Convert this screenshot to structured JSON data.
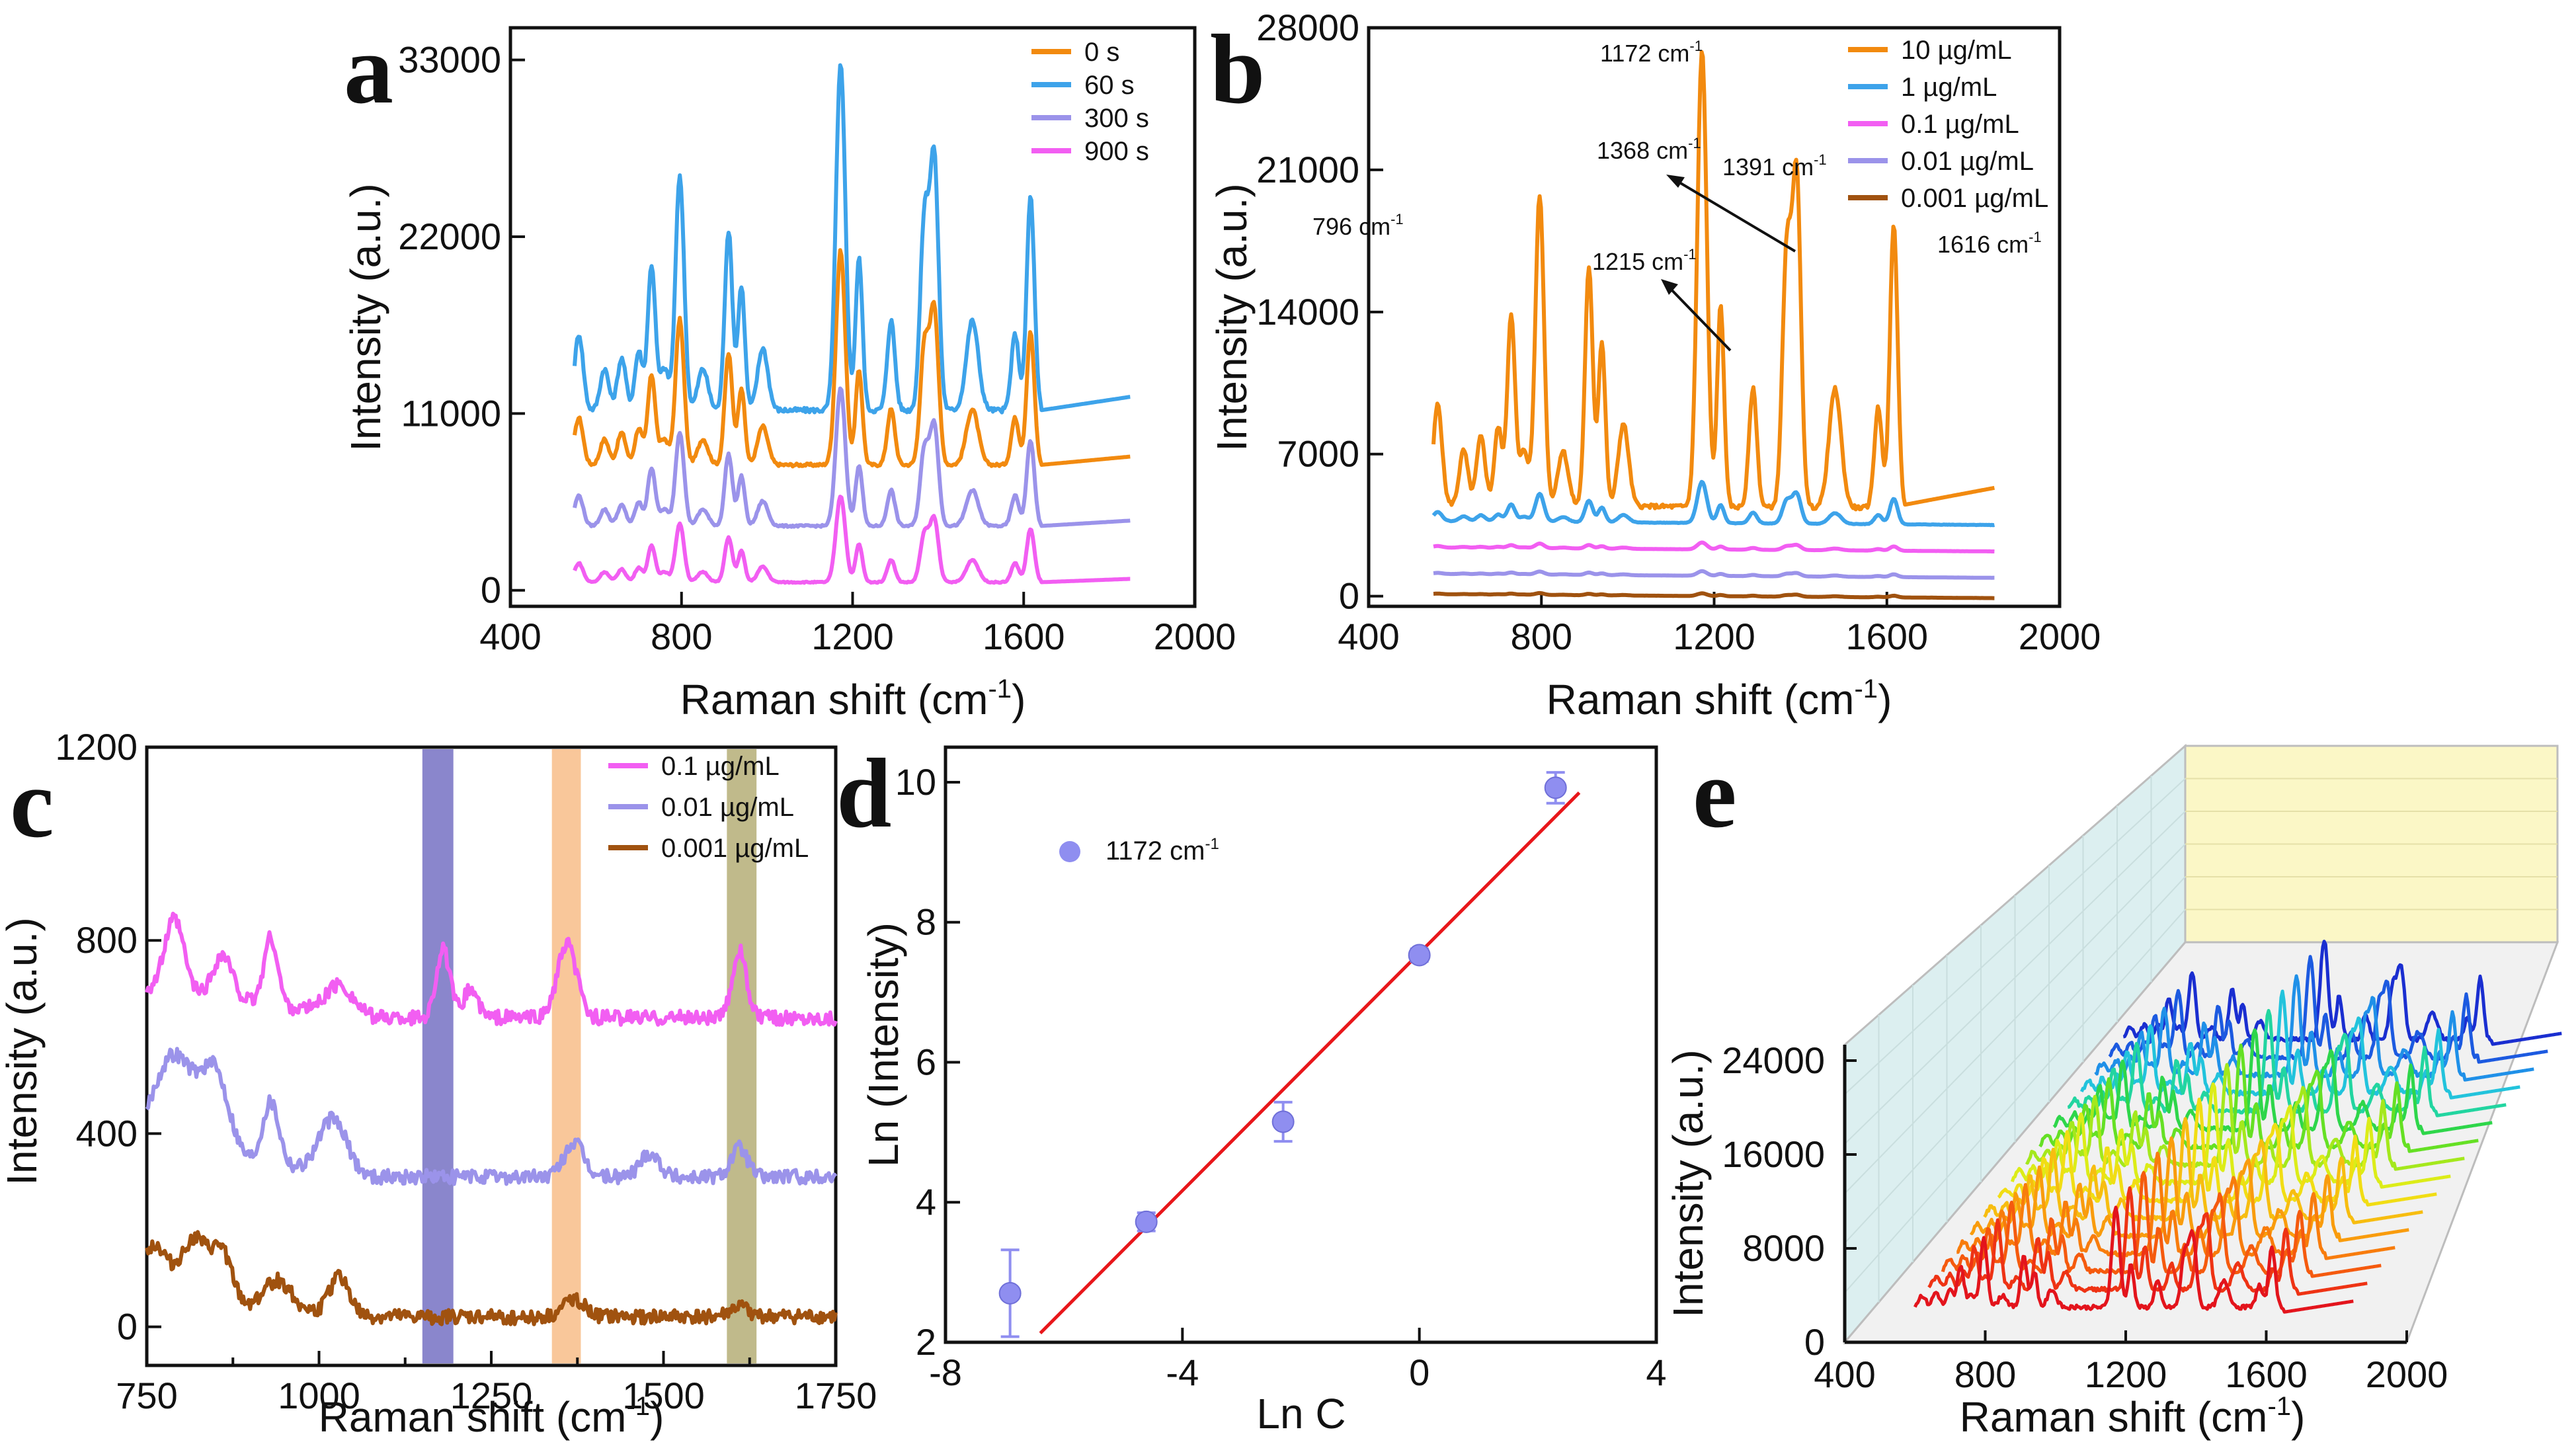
{
  "chart_data": [
    {
      "panel": "a",
      "type": "line",
      "xlabel": "Raman shift (cm-1)",
      "ylabel": "Intensity (a.u.)",
      "xlim": [
        400,
        2000
      ],
      "ylim": [
        -1000,
        35000
      ],
      "xticks": [
        400,
        800,
        1200,
        1600,
        2000
      ],
      "yticks": [
        0,
        11000,
        22000,
        33000
      ],
      "legend": "top-right",
      "peaks": [
        620,
        660,
        700,
        730,
        796,
        850,
        910,
        940,
        990,
        1172,
        1215,
        1290,
        1368,
        1391,
        1480,
        1580,
        1616
      ],
      "series": [
        {
          "name": "0 s",
          "color": "#f28a0f",
          "offset": 7800,
          "scale": 0.62
        },
        {
          "name": "60 s",
          "color": "#3da3ea",
          "offset": 11200,
          "scale": 1.0
        },
        {
          "name": "300 s",
          "color": "#9b93ea",
          "offset": 4000,
          "scale": 0.4
        },
        {
          "name": "900 s",
          "color": "#f25ef2",
          "offset": 500,
          "scale": 0.25
        }
      ]
    },
    {
      "panel": "b",
      "type": "line",
      "xlabel": "Raman shift (cm-1)",
      "ylabel": "Intensity (a.u.)",
      "xlim": [
        400,
        2000
      ],
      "ylim": [
        -500,
        28000
      ],
      "xticks": [
        400,
        800,
        1200,
        1600,
        2000
      ],
      "yticks": [
        0,
        7000,
        14000,
        21000,
        28000
      ],
      "legend": "top-right",
      "annotations": [
        "1172 cm-1",
        "1368 cm-1",
        "1391 cm-1",
        "796 cm-1",
        "1215 cm-1",
        "1616 cm-1"
      ],
      "series": [
        {
          "name": "10 µg/mL",
          "color": "#f28a0f",
          "offset": 4500,
          "scale": 1.0
        },
        {
          "name": "1 µg/mL",
          "color": "#3da3ea",
          "offset": 3700,
          "scale": 0.09
        },
        {
          "name": "0.1 µg/mL",
          "color": "#f25ef2",
          "offset": 2400,
          "scale": 0.015
        },
        {
          "name": "0.01 µg/mL",
          "color": "#9b93ea",
          "offset": 1100,
          "scale": 0.01
        },
        {
          "name": "0.001 µg/mL",
          "color": "#a0520f",
          "offset": 100,
          "scale": 0.006
        }
      ]
    },
    {
      "panel": "c",
      "type": "line",
      "xlabel": "Raman shift (cm-1)",
      "ylabel": "Intensity (a.u.)",
      "xlim": [
        750,
        1750
      ],
      "ylim": [
        -80,
        1200
      ],
      "xticks": [
        750,
        1000,
        1250,
        1500,
        1750
      ],
      "xticks_minor": [
        875,
        1125,
        1375,
        1625
      ],
      "yticks": [
        0,
        400,
        800,
        1200
      ],
      "legend": "top-right",
      "highlight_bands": [
        {
          "from": 1150,
          "to": 1195,
          "color": "#7d79c6"
        },
        {
          "from": 1338,
          "to": 1380,
          "color": "#f8c18f"
        },
        {
          "from": 1592,
          "to": 1635,
          "color": "#b9b27e"
        }
      ],
      "series": [
        {
          "name": "0.1 µg/mL",
          "color": "#f25ef2",
          "offset": 640
        },
        {
          "name": "0.01 µg/mL",
          "color": "#9b93ea",
          "offset": 310
        },
        {
          "name": "0.001 µg/mL",
          "color": "#a0520f",
          "offset": 20
        }
      ]
    },
    {
      "panel": "d",
      "type": "scatter",
      "xlabel": "Ln C",
      "ylabel": "Ln (Intensity)",
      "xlim": [
        -8,
        4
      ],
      "ylim": [
        2,
        10.5
      ],
      "xticks": [
        -8,
        -4,
        0,
        4
      ],
      "yticks": [
        2,
        4,
        6,
        8,
        10
      ],
      "legend": "top-left",
      "series": [
        {
          "name": "1172 cm-1",
          "color": "#8f8ef0",
          "x": [
            -6.91,
            -4.61,
            -2.3,
            0.0,
            2.3
          ],
          "y": [
            2.7,
            3.72,
            5.15,
            7.53,
            9.92
          ],
          "err": [
            0.62,
            0.13,
            0.28,
            0.09,
            0.22
          ]
        }
      ],
      "fit": {
        "color": "#e8161a",
        "x": [
          -6.4,
          2.7
        ],
        "y": [
          2.13,
          9.85
        ]
      }
    },
    {
      "panel": "e",
      "type": "line",
      "xlabel": "Raman shift (cm-1)",
      "ylabel": "Intensity (a.u.)",
      "xticks": [
        400,
        800,
        1200,
        1600,
        2000
      ],
      "yticks": [
        0,
        8000,
        16000,
        24000
      ],
      "colors": [
        "#e3141c",
        "#ee3314",
        "#f55a0e",
        "#f87c0c",
        "#f99c0d",
        "#f7bd10",
        "#f1dd14",
        "#dcec18",
        "#a4e81c",
        "#65e024",
        "#2ed64a",
        "#22d5a0",
        "#22c3dc",
        "#1f90e8",
        "#1c5ae0",
        "#1a2ed0"
      ]
    }
  ]
}
